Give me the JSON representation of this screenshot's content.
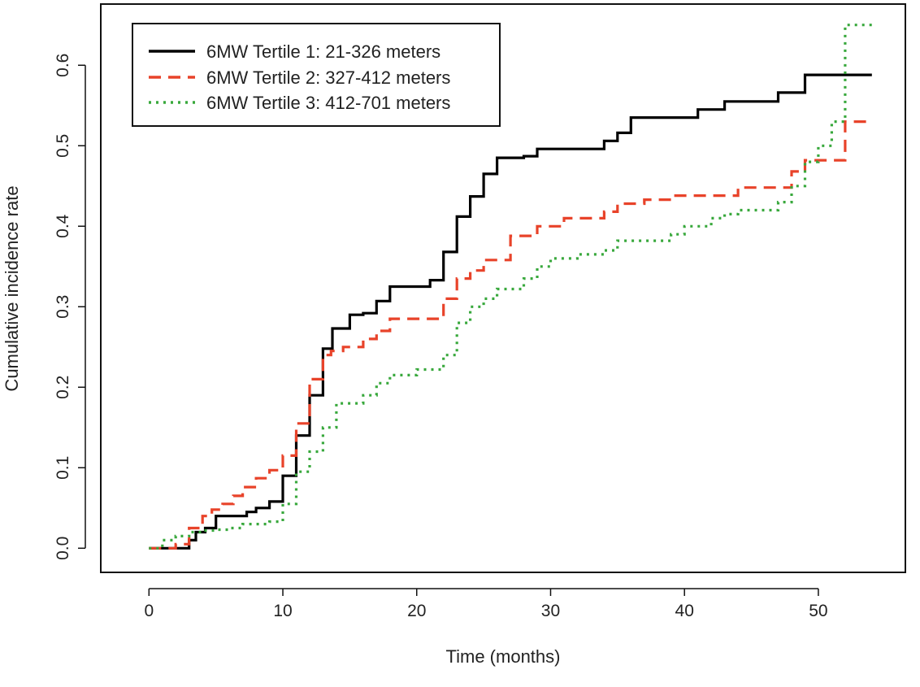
{
  "chart_data": {
    "type": "line",
    "step": true,
    "title": "",
    "xlabel": "Time (months)",
    "ylabel": "Cumulative incidence rate",
    "xlim": [
      -3.6,
      56.5
    ],
    "ylim": [
      -0.03,
      0.676
    ],
    "xticks": [
      0,
      10,
      20,
      30,
      40,
      50
    ],
    "yticks": [
      0.0,
      0.1,
      0.2,
      0.3,
      0.4,
      0.5,
      0.6
    ],
    "ytick_labels": [
      "0.0",
      "0.1",
      "0.2",
      "0.3",
      "0.4",
      "0.5",
      "0.6"
    ],
    "grid": false,
    "legend_position": "top-left",
    "series": [
      {
        "name": "6MW Tertile 1: 21-326 meters",
        "color": "#000000",
        "style": "solid",
        "x": [
          0,
          3,
          3.5,
          4.2,
          5,
          6.5,
          7.3,
          8,
          9,
          10,
          10.5,
          11,
          12,
          13,
          13.7,
          15,
          16,
          17,
          17.8,
          18,
          21,
          22,
          22.8,
          23,
          24,
          25,
          26,
          28,
          29,
          33,
          34,
          35,
          36,
          38,
          41,
          42,
          43,
          44,
          46,
          47,
          49,
          54
        ],
        "y": [
          0.0,
          0.01,
          0.02,
          0.025,
          0.04,
          0.04,
          0.045,
          0.05,
          0.058,
          0.09,
          0.09,
          0.14,
          0.19,
          0.248,
          0.273,
          0.29,
          0.292,
          0.307,
          0.307,
          0.325,
          0.333,
          0.368,
          0.368,
          0.412,
          0.437,
          0.465,
          0.485,
          0.487,
          0.496,
          0.496,
          0.506,
          0.516,
          0.535,
          0.535,
          0.545,
          0.545,
          0.555,
          0.555,
          0.555,
          0.566,
          0.588,
          0.588
        ]
      },
      {
        "name": "6MW Tertile 2: 327-412 meters",
        "color": "#e8432a",
        "style": "dashed",
        "x": [
          0,
          2,
          3,
          4,
          4.7,
          5.5,
          6.3,
          7,
          8,
          9,
          10,
          11,
          12,
          13,
          13.6,
          14.5,
          16,
          17,
          18,
          22,
          23,
          24,
          25,
          27,
          28,
          29,
          31,
          33,
          34,
          35,
          37,
          39,
          41,
          44,
          48,
          49,
          52,
          54
        ],
        "y": [
          0.0,
          0.005,
          0.025,
          0.04,
          0.048,
          0.055,
          0.065,
          0.076,
          0.087,
          0.097,
          0.115,
          0.155,
          0.21,
          0.24,
          0.245,
          0.25,
          0.26,
          0.27,
          0.285,
          0.31,
          0.335,
          0.345,
          0.358,
          0.388,
          0.388,
          0.4,
          0.41,
          0.41,
          0.418,
          0.428,
          0.433,
          0.438,
          0.438,
          0.448,
          0.468,
          0.482,
          0.53,
          0.53
        ]
      },
      {
        "name": "6MW Tertile 3: 412-701 meters",
        "color": "#38a83c",
        "style": "dotted",
        "x": [
          0,
          1,
          2,
          3,
          4,
          5,
          6,
          7,
          9,
          10,
          11,
          12,
          13,
          14,
          16,
          17,
          18,
          20,
          22,
          23,
          24,
          25,
          26,
          28,
          29,
          30,
          32,
          34,
          35,
          37,
          39,
          40,
          42,
          43,
          44,
          45,
          47,
          48,
          49,
          50,
          51,
          52,
          54
        ],
        "y": [
          0.0,
          0.01,
          0.015,
          0.02,
          0.022,
          0.023,
          0.025,
          0.03,
          0.033,
          0.055,
          0.095,
          0.12,
          0.15,
          0.18,
          0.19,
          0.205,
          0.215,
          0.222,
          0.24,
          0.28,
          0.3,
          0.31,
          0.322,
          0.335,
          0.35,
          0.36,
          0.365,
          0.37,
          0.382,
          0.382,
          0.39,
          0.4,
          0.41,
          0.415,
          0.42,
          0.42,
          0.43,
          0.45,
          0.48,
          0.5,
          0.53,
          0.65,
          0.65
        ]
      }
    ]
  }
}
